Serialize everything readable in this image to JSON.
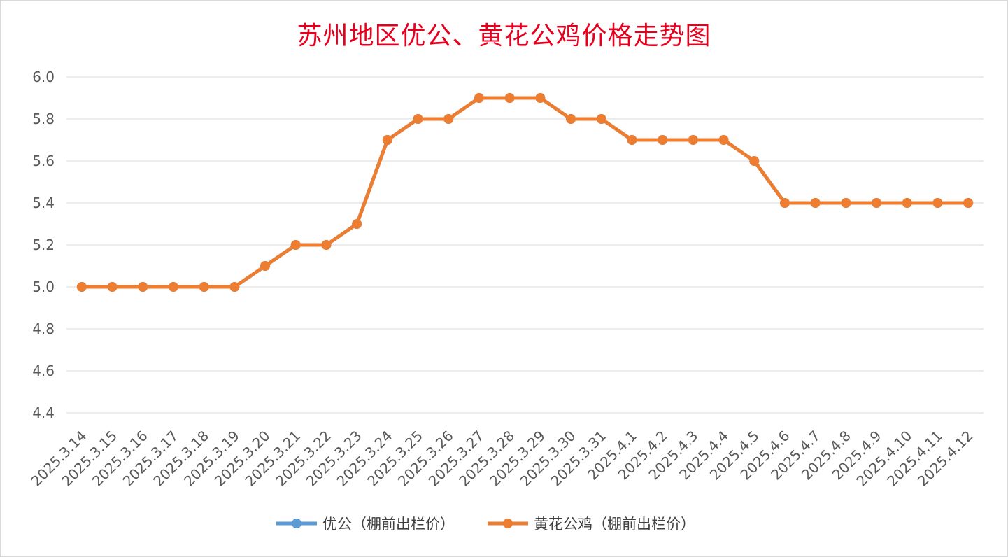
{
  "chart_data": {
    "type": "line",
    "title": "苏州地区优公、黄花公鸡价格走势图",
    "xlabel": "",
    "ylabel": "",
    "categories": [
      "2025.3.14",
      "2025.3.15",
      "2025.3.16",
      "2025.3.17",
      "2025.3.18",
      "2025.3.19",
      "2025.3.20",
      "2025.3.21",
      "2025.3.22",
      "2025.3.23",
      "2025.3.24",
      "2025.3.25",
      "2025.3.26",
      "2025.3.27",
      "2025.3.28",
      "2025.3.29",
      "2025.3.30",
      "2025.3.31",
      "2025.4.1",
      "2025.4.2",
      "2025.4.3",
      "2025.4.4",
      "2025.4.5",
      "2025.4.6",
      "2025.4.7",
      "2025.4.8",
      "2025.4.9",
      "2025.4.10",
      "2025.4.11",
      "2025.4.12"
    ],
    "ylim": [
      4.4,
      6.0
    ],
    "yticks": [
      "4.4",
      "4.6",
      "4.8",
      "5.0",
      "5.2",
      "5.4",
      "5.6",
      "5.8",
      "6.0"
    ],
    "grid": true,
    "legend_position": "bottom",
    "series": [
      {
        "name": "优公（棚前出栏价）",
        "color": "#5b9bd5",
        "values": [
          5.0,
          5.0,
          5.0,
          5.0,
          5.0,
          5.0,
          5.1,
          5.2,
          5.2,
          5.3,
          5.7,
          5.8,
          5.8,
          5.9,
          5.9,
          5.9,
          5.8,
          5.8,
          5.7,
          5.7,
          5.7,
          5.7,
          5.6,
          5.4,
          5.4,
          5.4,
          5.4,
          5.4,
          5.4,
          5.4
        ]
      },
      {
        "name": "黄花公鸡（棚前出栏价）",
        "color": "#ed7d31",
        "values": [
          5.0,
          5.0,
          5.0,
          5.0,
          5.0,
          5.0,
          5.1,
          5.2,
          5.2,
          5.3,
          5.7,
          5.8,
          5.8,
          5.9,
          5.9,
          5.9,
          5.8,
          5.8,
          5.7,
          5.7,
          5.7,
          5.7,
          5.6,
          5.4,
          5.4,
          5.4,
          5.4,
          5.4,
          5.4,
          5.4
        ]
      }
    ]
  }
}
